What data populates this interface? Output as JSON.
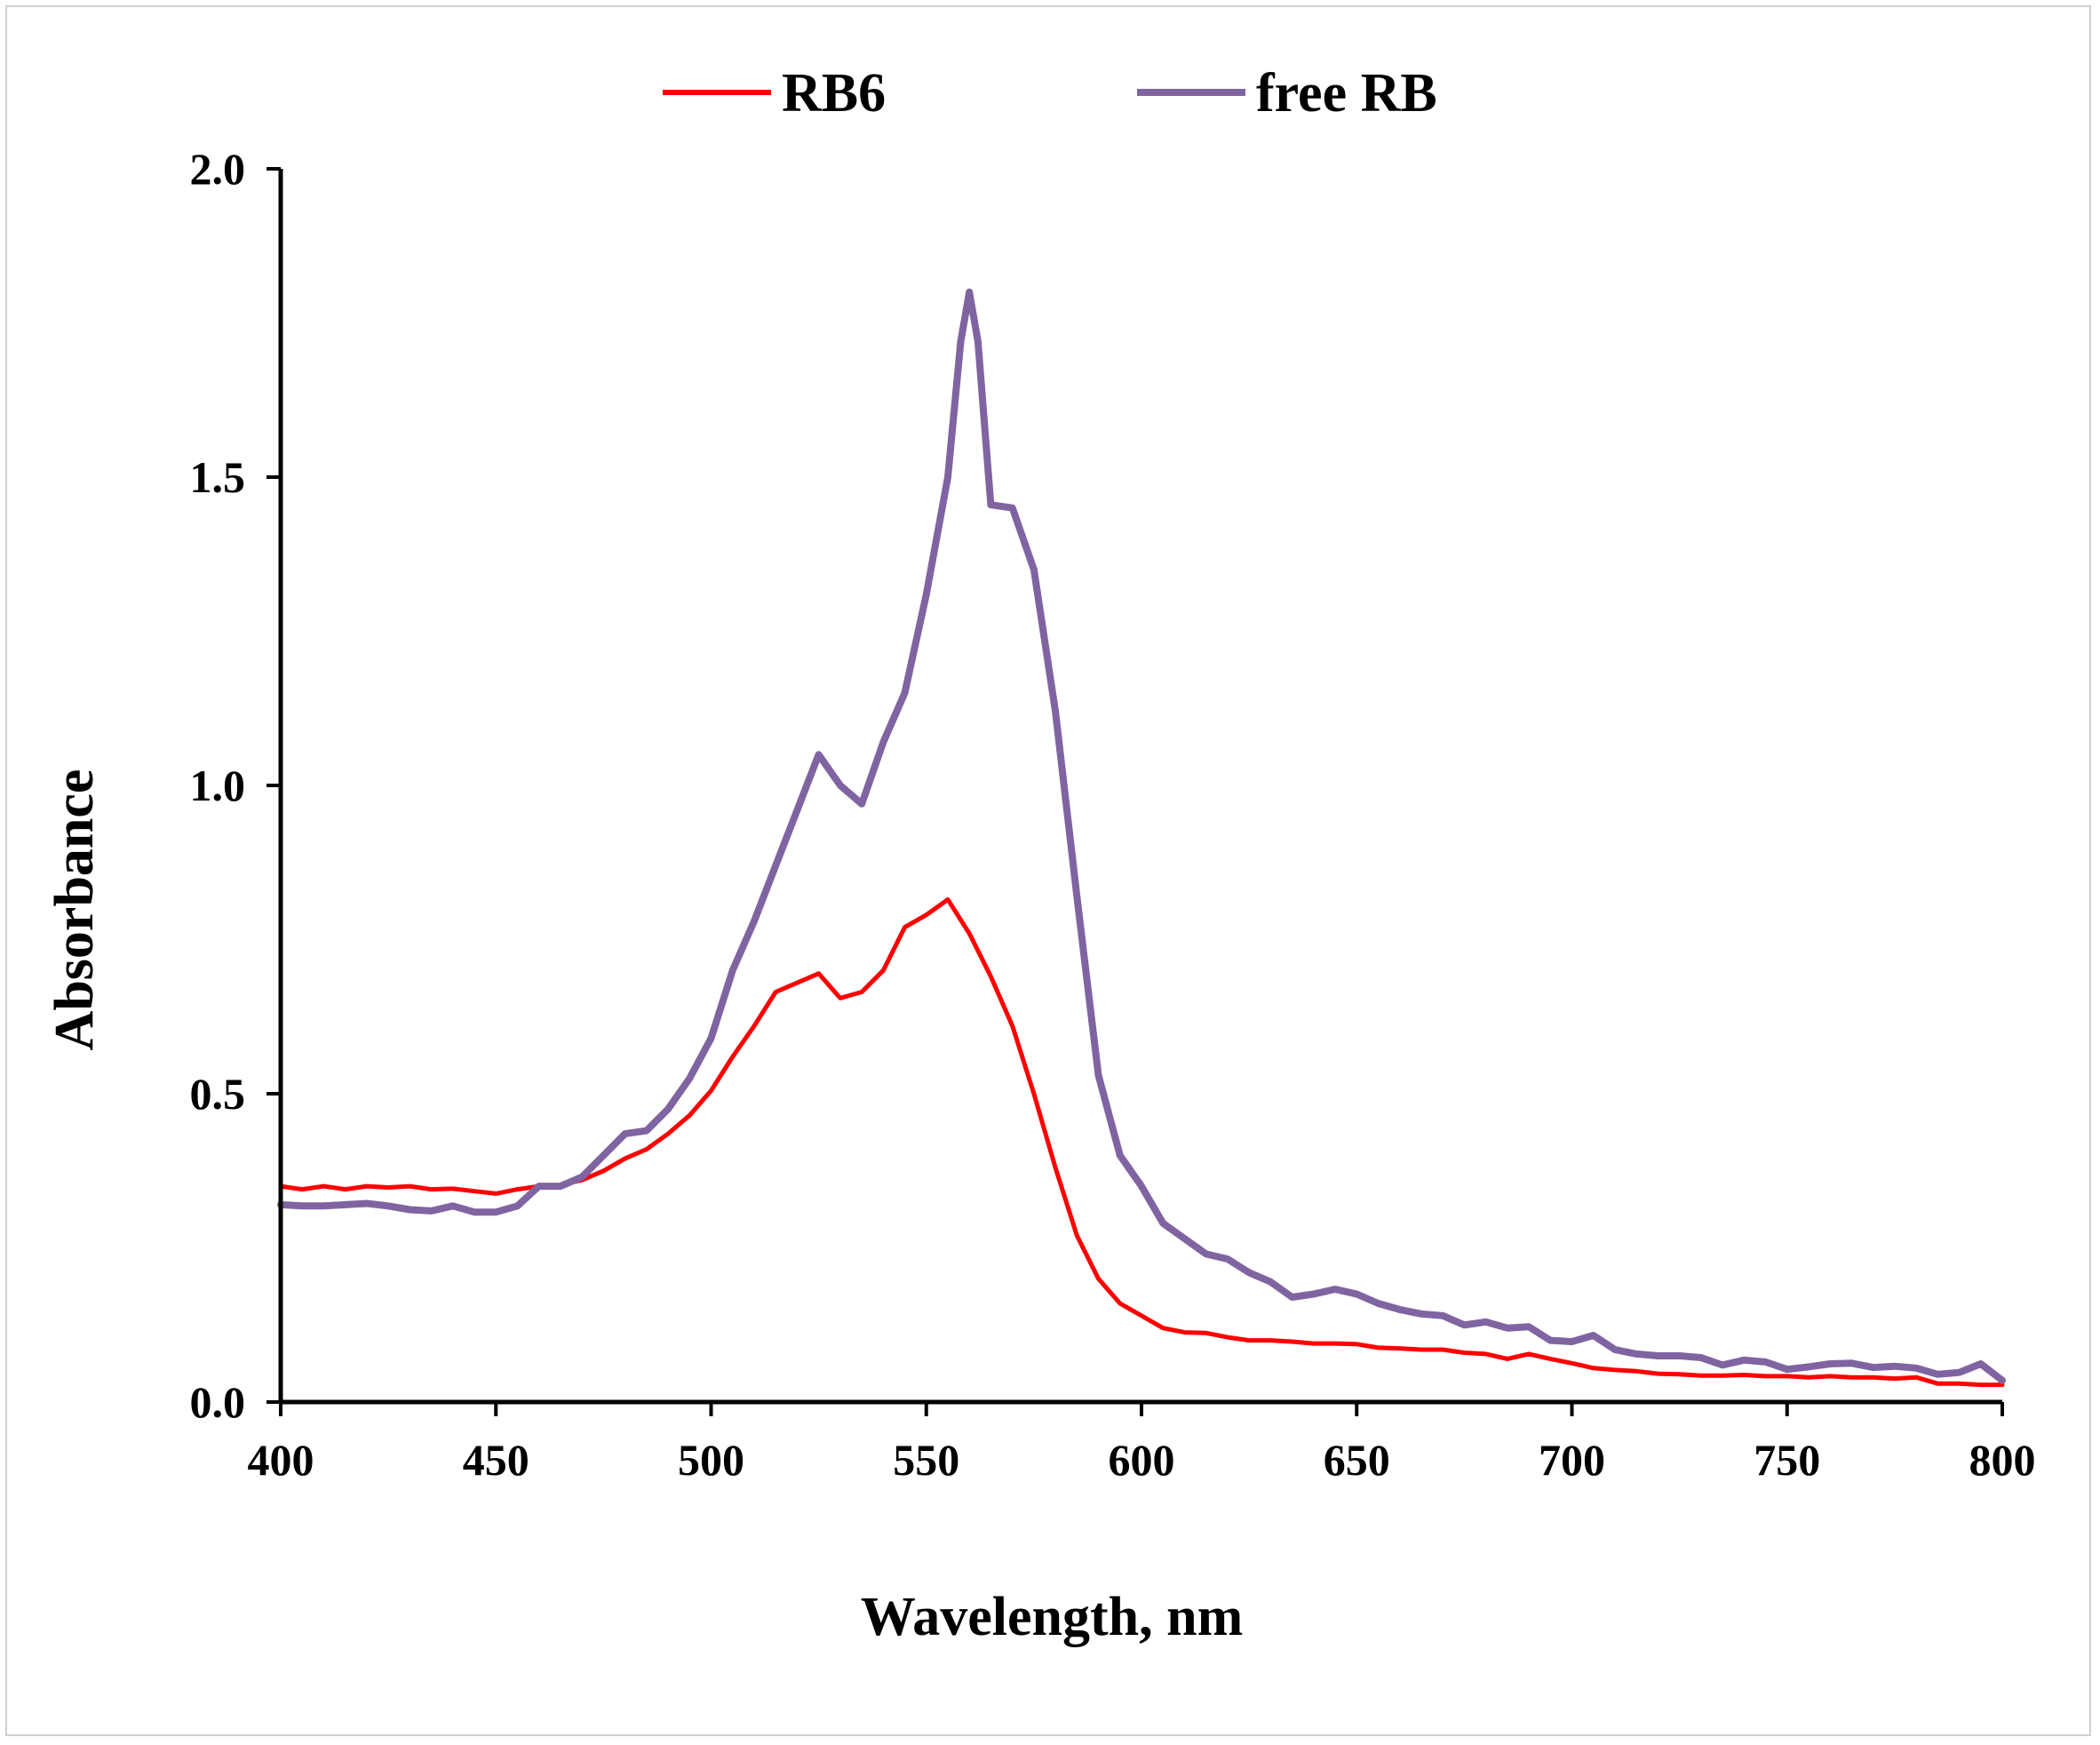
{
  "chart_data": {
    "type": "line",
    "title": "",
    "xlabel": "Wavelength, nm",
    "ylabel": "Absorbance",
    "xlim": [
      400,
      800
    ],
    "ylim": [
      0,
      2.0
    ],
    "x_ticks": [
      400,
      450,
      500,
      550,
      600,
      650,
      700,
      750,
      800
    ],
    "y_ticks": [
      "0.0",
      "0.5",
      "1.0",
      "1.5",
      "2.0"
    ],
    "grid": false,
    "legend_position": "top-center",
    "series": [
      {
        "name": "RB6",
        "color": "#ff0000",
        "points": [
          [
            400,
            0.35
          ],
          [
            405,
            0.345
          ],
          [
            410,
            0.35
          ],
          [
            415,
            0.345
          ],
          [
            420,
            0.35
          ],
          [
            425,
            0.348
          ],
          [
            430,
            0.35
          ],
          [
            435,
            0.345
          ],
          [
            440,
            0.346
          ],
          [
            445,
            0.342
          ],
          [
            450,
            0.338
          ],
          [
            455,
            0.345
          ],
          [
            460,
            0.35
          ],
          [
            465,
            0.352
          ],
          [
            470,
            0.36
          ],
          [
            475,
            0.375
          ],
          [
            480,
            0.395
          ],
          [
            485,
            0.41
          ],
          [
            490,
            0.435
          ],
          [
            495,
            0.465
          ],
          [
            500,
            0.505
          ],
          [
            505,
            0.56
          ],
          [
            510,
            0.61
          ],
          [
            515,
            0.665
          ],
          [
            520,
            0.68
          ],
          [
            525,
            0.695
          ],
          [
            530,
            0.655
          ],
          [
            535,
            0.665
          ],
          [
            540,
            0.7
          ],
          [
            545,
            0.77
          ],
          [
            550,
            0.79
          ],
          [
            555,
            0.815
          ],
          [
            560,
            0.76
          ],
          [
            565,
            0.69
          ],
          [
            570,
            0.61
          ],
          [
            575,
            0.5
          ],
          [
            580,
            0.38
          ],
          [
            585,
            0.27
          ],
          [
            590,
            0.2
          ],
          [
            595,
            0.16
          ],
          [
            600,
            0.14
          ],
          [
            605,
            0.12
          ],
          [
            610,
            0.113
          ],
          [
            615,
            0.112
          ],
          [
            620,
            0.105
          ],
          [
            625,
            0.1
          ],
          [
            630,
            0.1
          ],
          [
            635,
            0.098
          ],
          [
            640,
            0.095
          ],
          [
            645,
            0.095
          ],
          [
            650,
            0.094
          ],
          [
            655,
            0.088
          ],
          [
            660,
            0.087
          ],
          [
            665,
            0.085
          ],
          [
            670,
            0.085
          ],
          [
            675,
            0.08
          ],
          [
            680,
            0.078
          ],
          [
            685,
            0.07
          ],
          [
            690,
            0.078
          ],
          [
            695,
            0.07
          ],
          [
            700,
            0.063
          ],
          [
            705,
            0.055
          ],
          [
            710,
            0.052
          ],
          [
            715,
            0.05
          ],
          [
            720,
            0.046
          ],
          [
            725,
            0.045
          ],
          [
            730,
            0.043
          ],
          [
            735,
            0.043
          ],
          [
            740,
            0.044
          ],
          [
            745,
            0.042
          ],
          [
            750,
            0.042
          ],
          [
            755,
            0.04
          ],
          [
            760,
            0.042
          ],
          [
            765,
            0.04
          ],
          [
            770,
            0.04
          ],
          [
            775,
            0.038
          ],
          [
            780,
            0.04
          ],
          [
            785,
            0.03
          ],
          [
            790,
            0.03
          ],
          [
            795,
            0.028
          ],
          [
            800,
            0.028
          ]
        ]
      },
      {
        "name": "free RB",
        "color": "#8064a2",
        "points": [
          [
            400,
            0.32
          ],
          [
            405,
            0.318
          ],
          [
            410,
            0.318
          ],
          [
            415,
            0.32
          ],
          [
            420,
            0.322
          ],
          [
            425,
            0.318
          ],
          [
            430,
            0.312
          ],
          [
            435,
            0.31
          ],
          [
            440,
            0.318
          ],
          [
            445,
            0.308
          ],
          [
            450,
            0.308
          ],
          [
            455,
            0.318
          ],
          [
            460,
            0.35
          ],
          [
            465,
            0.35
          ],
          [
            470,
            0.365
          ],
          [
            475,
            0.4
          ],
          [
            480,
            0.435
          ],
          [
            485,
            0.44
          ],
          [
            490,
            0.475
          ],
          [
            495,
            0.525
          ],
          [
            500,
            0.59
          ],
          [
            505,
            0.7
          ],
          [
            510,
            0.78
          ],
          [
            515,
            0.87
          ],
          [
            520,
            0.96
          ],
          [
            525,
            1.05
          ],
          [
            530,
            1.0
          ],
          [
            535,
            0.97
          ],
          [
            540,
            1.07
          ],
          [
            545,
            1.15
          ],
          [
            550,
            1.31
          ],
          [
            555,
            1.5
          ],
          [
            558,
            1.72
          ],
          [
            560,
            1.8
          ],
          [
            562,
            1.72
          ],
          [
            565,
            1.455
          ],
          [
            570,
            1.45
          ],
          [
            575,
            1.35
          ],
          [
            580,
            1.12
          ],
          [
            585,
            0.82
          ],
          [
            590,
            0.53
          ],
          [
            595,
            0.4
          ],
          [
            600,
            0.35
          ],
          [
            605,
            0.29
          ],
          [
            610,
            0.265
          ],
          [
            615,
            0.24
          ],
          [
            620,
            0.232
          ],
          [
            625,
            0.21
          ],
          [
            630,
            0.195
          ],
          [
            635,
            0.17
          ],
          [
            640,
            0.175
          ],
          [
            645,
            0.183
          ],
          [
            650,
            0.175
          ],
          [
            655,
            0.16
          ],
          [
            660,
            0.15
          ],
          [
            665,
            0.143
          ],
          [
            670,
            0.14
          ],
          [
            675,
            0.125
          ],
          [
            680,
            0.13
          ],
          [
            685,
            0.12
          ],
          [
            690,
            0.122
          ],
          [
            695,
            0.1
          ],
          [
            700,
            0.098
          ],
          [
            705,
            0.108
          ],
          [
            710,
            0.085
          ],
          [
            715,
            0.078
          ],
          [
            720,
            0.075
          ],
          [
            725,
            0.075
          ],
          [
            730,
            0.072
          ],
          [
            735,
            0.06
          ],
          [
            740,
            0.068
          ],
          [
            745,
            0.065
          ],
          [
            750,
            0.053
          ],
          [
            755,
            0.057
          ],
          [
            760,
            0.062
          ],
          [
            765,
            0.063
          ],
          [
            770,
            0.056
          ],
          [
            775,
            0.058
          ],
          [
            780,
            0.055
          ],
          [
            785,
            0.045
          ],
          [
            790,
            0.048
          ],
          [
            795,
            0.062
          ],
          [
            800,
            0.035
          ]
        ]
      }
    ]
  }
}
